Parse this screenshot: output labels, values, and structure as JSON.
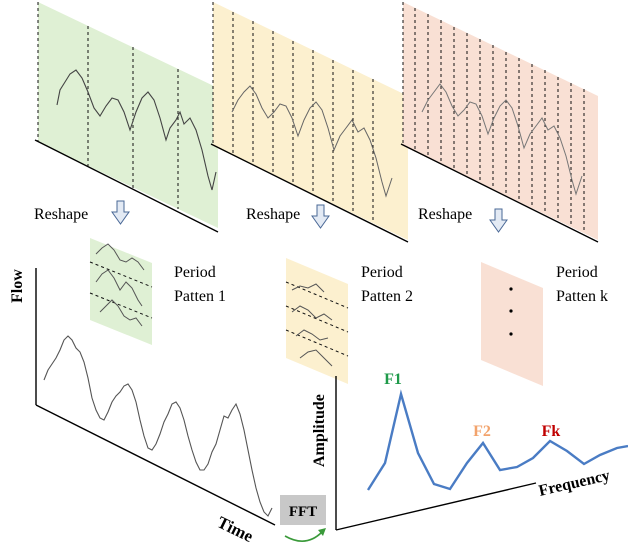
{
  "top_panels": [
    {
      "reshape_label": "Reshape",
      "fill": "#dff0d4"
    },
    {
      "reshape_label": "Reshape",
      "fill": "#fcf0cf"
    },
    {
      "reshape_label": "Reshape",
      "fill": "#f9e0d4"
    }
  ],
  "period_patterns": [
    {
      "line1": "Period",
      "line2": "Patten 1",
      "fill": "#dff0d4"
    },
    {
      "line1": "Period",
      "line2": "Patten 2",
      "fill": "#fcf0cf"
    },
    {
      "line1": "Period",
      "line2": "Patten k",
      "fill": "#f9e0d4"
    }
  ],
  "flow_axis_label": "Flow",
  "time_axis_label": "Time",
  "fft_label": "FFT",
  "spectrum": {
    "y_axis_label": "Amplitude",
    "x_axis_label": "Frequency",
    "peaks": [
      {
        "label": "F1",
        "color": "#1f9a4a"
      },
      {
        "label": "F2",
        "color": "#f2a36c"
      },
      {
        "label": "Fk",
        "color": "#c00000"
      }
    ],
    "line_color": "#4a7cc4"
  }
}
